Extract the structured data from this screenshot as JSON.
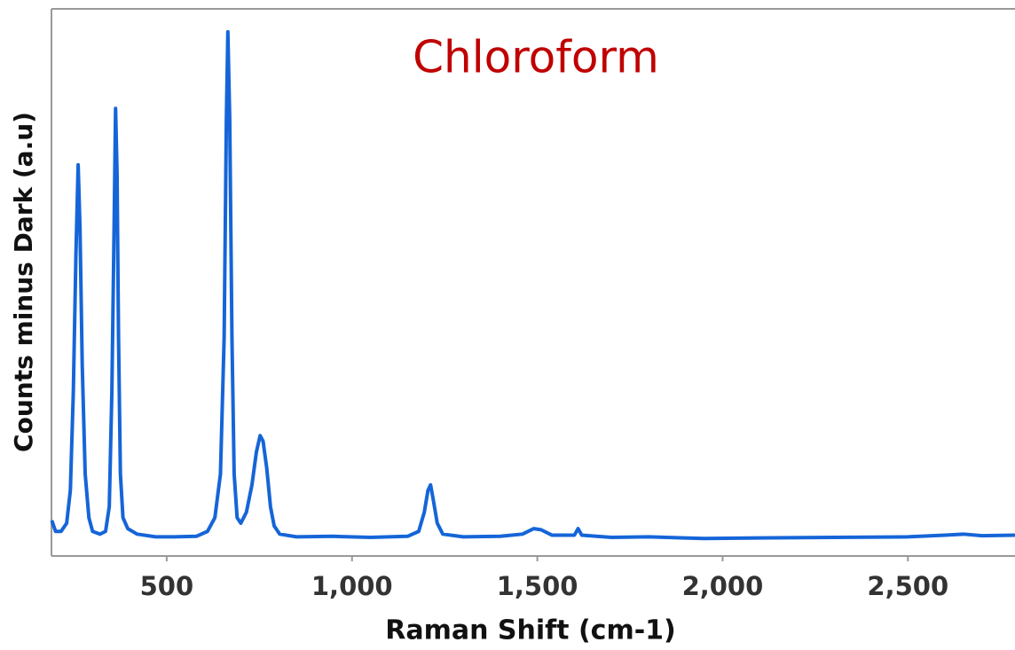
{
  "chart_data": {
    "type": "line",
    "title": "Chloroform",
    "x_label": "Raman Shift (cm-1)",
    "y_label": "Counts minus Dark (a.u)",
    "x": [
      190,
      200,
      215,
      230,
      240,
      248,
      255,
      261,
      266,
      272,
      280,
      290,
      300,
      320,
      335,
      345,
      352,
      358,
      362,
      366,
      370,
      375,
      382,
      395,
      420,
      470,
      520,
      580,
      610,
      630,
      645,
      655,
      661,
      665,
      670,
      676,
      682,
      690,
      700,
      715,
      730,
      742,
      752,
      760,
      770,
      780,
      790,
      805,
      850,
      950,
      1050,
      1150,
      1180,
      1195,
      1205,
      1212,
      1220,
      1230,
      1245,
      1300,
      1400,
      1460,
      1490,
      1510,
      1540,
      1600,
      1610,
      1620,
      1700,
      1800,
      1950,
      2100,
      2300,
      2500,
      2600,
      2650,
      2700,
      2789
    ],
    "series": [
      {
        "name": "Chloroform",
        "color": "#1565d8",
        "values": [
          6.5,
          4.5,
          4.5,
          6,
          12,
          30,
          55,
          71.5,
          60,
          35,
          15,
          7,
          4.5,
          4,
          4.5,
          9,
          30,
          60,
          81.8,
          70,
          40,
          15,
          7,
          5,
          4,
          3.5,
          3.5,
          3.6,
          4.5,
          7,
          15,
          40,
          80,
          95.8,
          80,
          40,
          15,
          7,
          6,
          8,
          13,
          19,
          22,
          21,
          16,
          9,
          5.5,
          4,
          3.5,
          3.6,
          3.4,
          3.6,
          4.5,
          8,
          12,
          13,
          10,
          6,
          4,
          3.5,
          3.6,
          4,
          5,
          4.8,
          3.8,
          3.8,
          5,
          3.8,
          3.4,
          3.5,
          3.2,
          3.3,
          3.4,
          3.5,
          3.8,
          4,
          3.7,
          3.8
        ]
      }
    ],
    "xlim": [
      189,
      2789
    ],
    "ylim": [
      0,
      100
    ],
    "xticks": [
      500,
      {
        "value": 1000,
        "label": "1,000"
      },
      {
        "value": 1500,
        "label": "1,500"
      },
      {
        "value": 2000,
        "label": "2,000"
      },
      {
        "value": 2500,
        "label": "2,500"
      }
    ]
  }
}
